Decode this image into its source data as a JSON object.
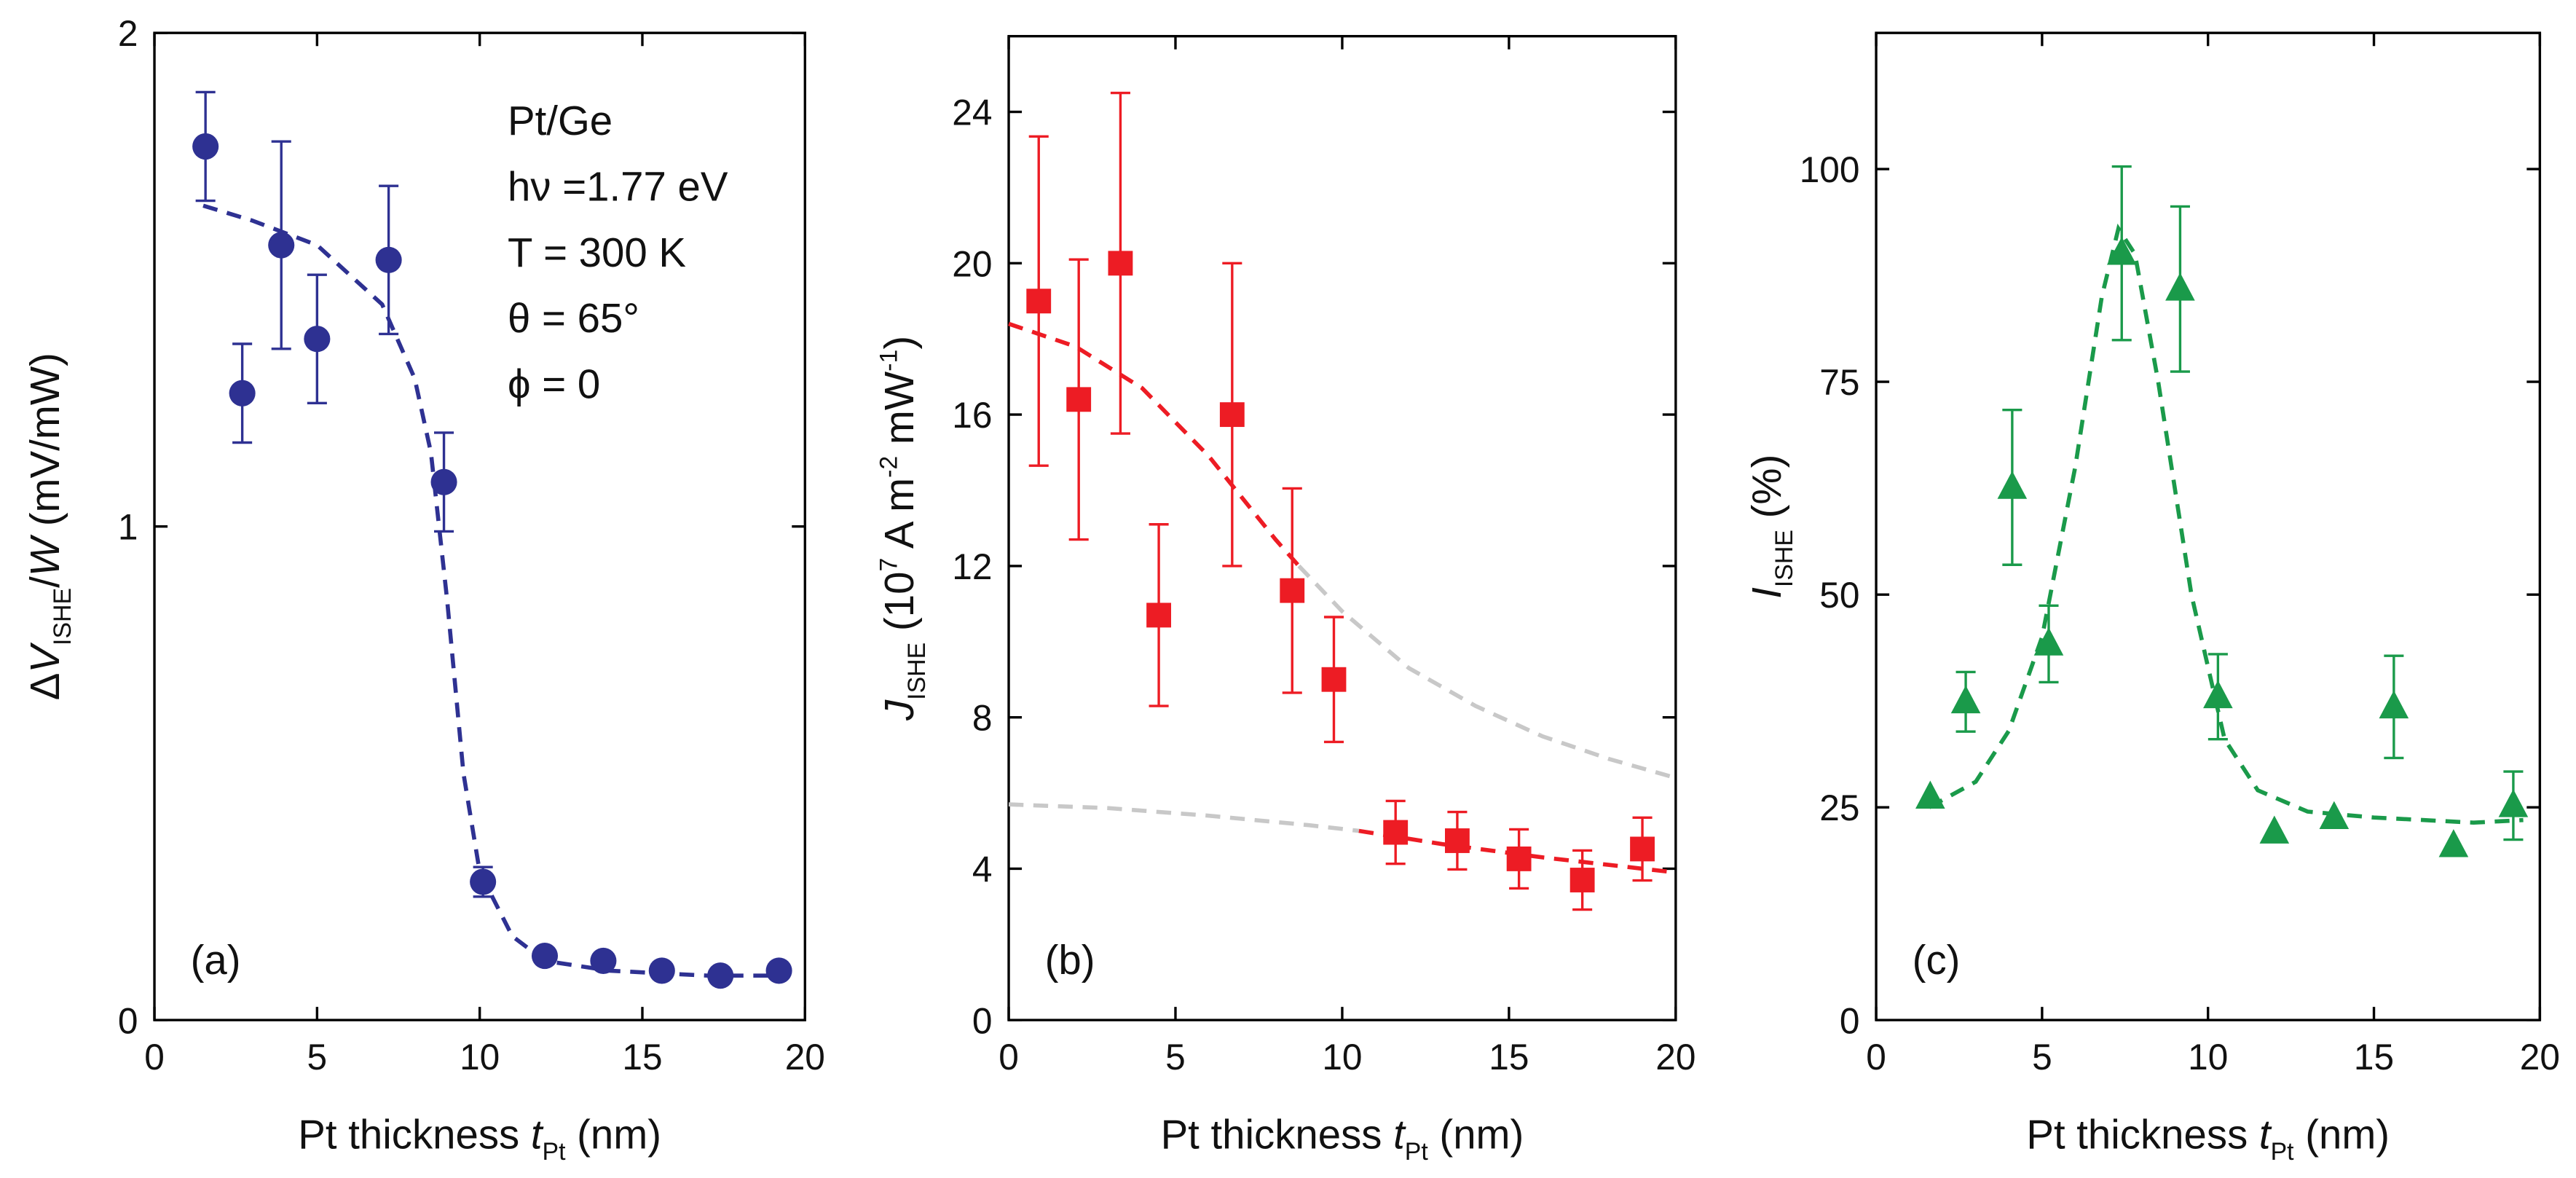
{
  "chart_data": [
    {
      "type": "scatter",
      "marker": "circle",
      "color": "#2e3192",
      "x": [
        1.57,
        2.7,
        3.9,
        5.0,
        7.2,
        8.9,
        10.1,
        12.0,
        13.8,
        15.6,
        17.4,
        19.2
      ],
      "values": [
        1.77,
        1.27,
        1.57,
        1.38,
        1.54,
        1.09,
        0.28,
        0.13,
        0.12,
        0.1,
        0.09,
        0.1
      ],
      "errors": [
        0.11,
        0.1,
        0.21,
        0.13,
        0.15,
        0.1,
        0.03,
        null,
        null,
        null,
        null,
        null
      ],
      "fits": [
        {
          "color": "#2e3192",
          "x": [
            1.5,
            3,
            5,
            7,
            8,
            8.5,
            9,
            9.5,
            10,
            11,
            12,
            14,
            17,
            19.5
          ],
          "values": [
            1.65,
            1.62,
            1.57,
            1.45,
            1.3,
            1.15,
            0.85,
            0.5,
            0.3,
            0.17,
            0.12,
            0.1,
            0.09,
            0.09
          ]
        }
      ],
      "xlim": [
        0,
        20
      ],
      "xticks": [
        0,
        5,
        10,
        15,
        20
      ],
      "ylim": [
        0,
        2
      ],
      "yticks": [
        0,
        1,
        2
      ],
      "x_label": [
        {
          "text": "Pt thickness "
        },
        {
          "text": "t",
          "style": "italic"
        },
        {
          "text": "Pt",
          "style": "sub"
        },
        {
          "text": " (nm)"
        }
      ],
      "y_label": [
        {
          "text": "Δ"
        },
        {
          "text": "V",
          "style": "italic"
        },
        {
          "text": "ISHE",
          "style": "sub"
        },
        {
          "text": "/"
        },
        {
          "text": "W",
          "style": "italic"
        },
        {
          "text": " (mV/mW)"
        }
      ],
      "panel_label": "(a)",
      "annotations": [
        "Pt/Ge",
        "hν =1.77 eV",
        "T = 300 K",
        "θ = 65°",
        "ϕ = 0"
      ]
    },
    {
      "type": "scatter",
      "marker": "square",
      "color": "#ed1c24",
      "x": [
        0.9,
        2.1,
        3.35,
        4.5,
        6.7,
        8.5,
        9.75,
        11.6,
        13.45,
        15.3,
        17.2,
        19.0
      ],
      "values": [
        19.0,
        16.4,
        20.0,
        10.7,
        16.0,
        11.35,
        9.0,
        4.96,
        4.74,
        4.26,
        3.7,
        4.52
      ],
      "errors": [
        4.35,
        3.7,
        4.5,
        2.4,
        4.0,
        2.7,
        1.65,
        0.83,
        0.76,
        0.78,
        0.78,
        0.83
      ],
      "fits": [
        {
          "color": "#ed1c24",
          "x": [
            0,
            2,
            4,
            6,
            8,
            8.7
          ],
          "values": [
            18.4,
            17.8,
            16.7,
            14.9,
            12.7,
            12.0
          ]
        },
        {
          "color": "#c8c8c8",
          "x": [
            8.7,
            10,
            12,
            14,
            16,
            18,
            20
          ],
          "values": [
            12.0,
            10.8,
            9.3,
            8.3,
            7.5,
            6.9,
            6.4
          ]
        },
        {
          "color": "#c8c8c8",
          "x": [
            0,
            3,
            6,
            9,
            10.5
          ],
          "values": [
            5.7,
            5.6,
            5.4,
            5.15,
            5.0
          ]
        },
        {
          "color": "#ed1c24",
          "x": [
            10.5,
            13,
            16,
            18,
            20
          ],
          "values": [
            5.0,
            4.65,
            4.3,
            4.1,
            3.9
          ]
        }
      ],
      "xlim": [
        0,
        20
      ],
      "xticks": [
        0,
        5,
        10,
        15,
        20
      ],
      "ylim": [
        0,
        26
      ],
      "yticks": [
        0,
        4,
        8,
        12,
        16,
        20,
        24
      ],
      "x_label": [
        {
          "text": "Pt thickness "
        },
        {
          "text": "t",
          "style": "italic"
        },
        {
          "text": "Pt",
          "style": "sub"
        },
        {
          "text": " (nm)"
        }
      ],
      "y_label": [
        {
          "text": "J",
          "style": "italic"
        },
        {
          "text": "ISHE",
          "style": "sub"
        },
        {
          "text": " (10"
        },
        {
          "text": "7",
          "style": "sup"
        },
        {
          "text": " A m"
        },
        {
          "text": "-2",
          "style": "sup"
        },
        {
          "text": " mW"
        },
        {
          "text": "-1",
          "style": "sup"
        },
        {
          "text": ")"
        }
      ],
      "panel_label": "(b)"
    },
    {
      "type": "scatter",
      "marker": "triangle",
      "color": "#1a9a4a",
      "x": [
        1.63,
        2.7,
        4.1,
        5.2,
        7.4,
        9.16,
        10.3,
        12.0,
        13.8,
        15.6,
        17.4,
        19.2
      ],
      "values": [
        26.2,
        37.4,
        62.6,
        44.2,
        90.1,
        85.9,
        38.0,
        22.1,
        23.8,
        36.8,
        20.5,
        25.2
      ],
      "errors": [
        null,
        3.5,
        9.1,
        4.5,
        10.2,
        9.7,
        5.0,
        null,
        null,
        6.0,
        null,
        4.0
      ],
      "fits": [
        {
          "color": "#1a9a4a",
          "x": [
            1.6,
            3,
            4,
            5,
            6,
            6.8,
            7.3,
            7.8,
            8.5,
            9.5,
            10.5,
            11.5,
            13,
            15,
            18,
            19.5
          ],
          "values": [
            25,
            28,
            34,
            45,
            65,
            85,
            93,
            90,
            75,
            50,
            33,
            27,
            24.5,
            23.8,
            23.2,
            23.5
          ]
        }
      ],
      "xlim": [
        0,
        20
      ],
      "xticks": [
        0,
        5,
        10,
        15,
        20
      ],
      "ylim": [
        0,
        116
      ],
      "yticks": [
        0,
        25,
        50,
        75,
        100
      ],
      "x_label": [
        {
          "text": "Pt thickness "
        },
        {
          "text": "t",
          "style": "italic"
        },
        {
          "text": "Pt",
          "style": "sub"
        },
        {
          "text": " (nm)"
        }
      ],
      "y_label": [
        {
          "text": "I",
          "style": "italic"
        },
        {
          "text": "ISHE",
          "style": "sub"
        },
        {
          "text": " (%)"
        }
      ],
      "panel_label": "(c)"
    }
  ]
}
